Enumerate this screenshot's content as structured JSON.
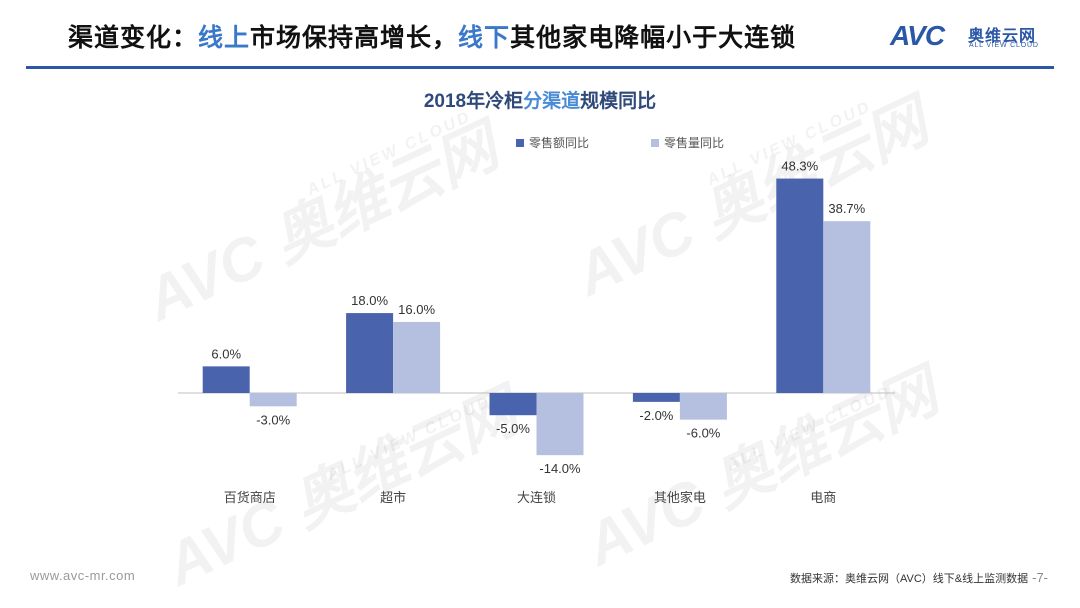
{
  "header": {
    "title_part1": "渠道变化：",
    "title_hl1": "线上",
    "title_part2": "市场保持高增长，",
    "title_hl2": "线下",
    "title_part3": "其他家电降幅小于大连锁"
  },
  "logo": {
    "mark": "AVC",
    "name_cn": "奥维云网",
    "name_en": "ALL VIEW CLOUD"
  },
  "watermark": {
    "brand": "AVC 奥维云网",
    "tagline": "ALL VIEW CLOUD"
  },
  "chart_title": {
    "part1": "2018年冷柜",
    "hl": "分渠道",
    "part2": "规模同比"
  },
  "chart_data": {
    "type": "bar",
    "title": "2018年冷柜分渠道规模同比",
    "categories": [
      "百货商店",
      "超市",
      "大连锁",
      "其他家电",
      "电商"
    ],
    "series": [
      {
        "name": "零售额同比",
        "color": "#4a63ad",
        "values": [
          6.0,
          18.0,
          -5.0,
          -2.0,
          48.3
        ],
        "labels": [
          "6.0%",
          "18.0%",
          "-5.0%",
          "-2.0%",
          "48.3%"
        ]
      },
      {
        "name": "零售量同比",
        "color": "#b5c0e0",
        "values": [
          -3.0,
          16.0,
          -14.0,
          -6.0,
          38.7
        ],
        "labels": [
          "-3.0%",
          "16.0%",
          "-14.0%",
          "-6.0%",
          "38.7%"
        ]
      }
    ],
    "ylim": [
      -14,
      48.3
    ],
    "legend_position": "top-center",
    "grid": false
  },
  "footer": {
    "website": "www.avc-mr.com",
    "source": "数据来源：奥维云网（AVC）线下&线上监测数据",
    "page": "-7-"
  }
}
